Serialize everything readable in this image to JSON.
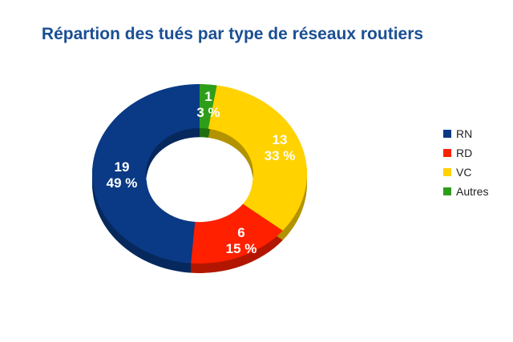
{
  "chart_data": {
    "type": "pie",
    "variant": "donut-3d",
    "title": "Répartion des tués par type de réseaux routiers",
    "categories": [
      "RN",
      "RD",
      "VC",
      "Autres"
    ],
    "values": [
      19,
      6,
      13,
      1
    ],
    "percent_labels": [
      "49 %",
      "15 %",
      "33 %",
      "3 %"
    ],
    "colors": [
      "#0a3a85",
      "#ff2000",
      "#ffd200",
      "#2e9e1a"
    ],
    "legend_position": "right"
  }
}
